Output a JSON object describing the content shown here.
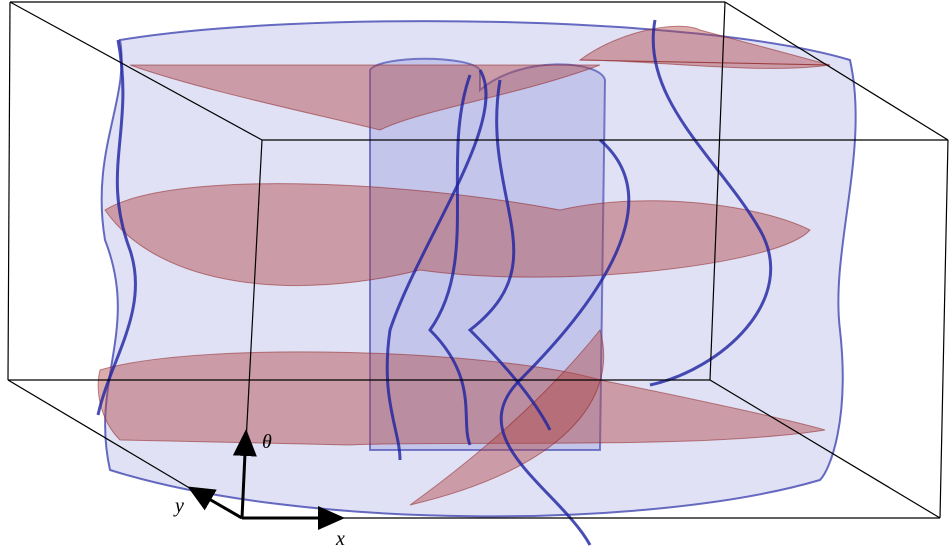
{
  "axes": {
    "theta": "θ",
    "y": "y",
    "x": "x"
  }
}
